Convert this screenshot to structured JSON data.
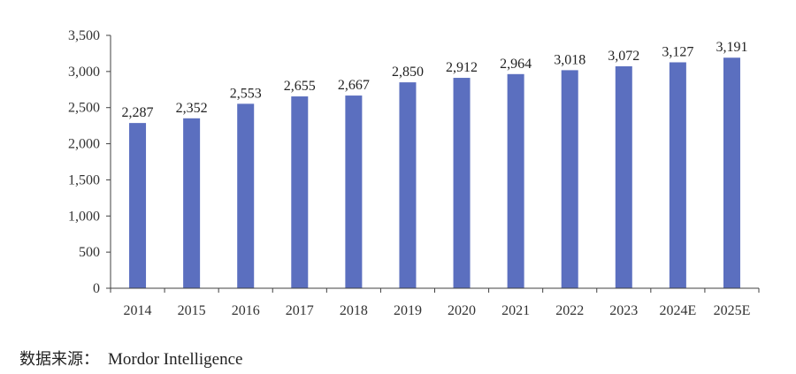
{
  "chart_data": {
    "type": "bar",
    "title": "",
    "xlabel": "",
    "ylabel": "",
    "categories": [
      "2014",
      "2015",
      "2016",
      "2017",
      "2018",
      "2019",
      "2020",
      "2021",
      "2022",
      "2023",
      "2024E",
      "2025E"
    ],
    "values": [
      2287,
      2352,
      2553,
      2655,
      2667,
      2850,
      2912,
      2964,
      3018,
      3072,
      3127,
      3191
    ],
    "value_labels": [
      "2,287",
      "2,352",
      "2,553",
      "2,655",
      "2,667",
      "2,850",
      "2,912",
      "2,964",
      "3,018",
      "3,072",
      "3,127",
      "3,191"
    ],
    "ylim": [
      0,
      3500
    ],
    "yticks": [
      0,
      500,
      1000,
      1500,
      2000,
      2500,
      3000,
      3500
    ],
    "ytick_labels": [
      "0",
      "500",
      "1,000",
      "1,500",
      "2,000",
      "2,500",
      "3,000",
      "3,500"
    ],
    "grid": false,
    "legend": "none",
    "bar_color": "#5b6fbf",
    "axis_color": "#404040"
  },
  "source": {
    "label": "数据来源：",
    "value": "Mordor Intelligence"
  }
}
